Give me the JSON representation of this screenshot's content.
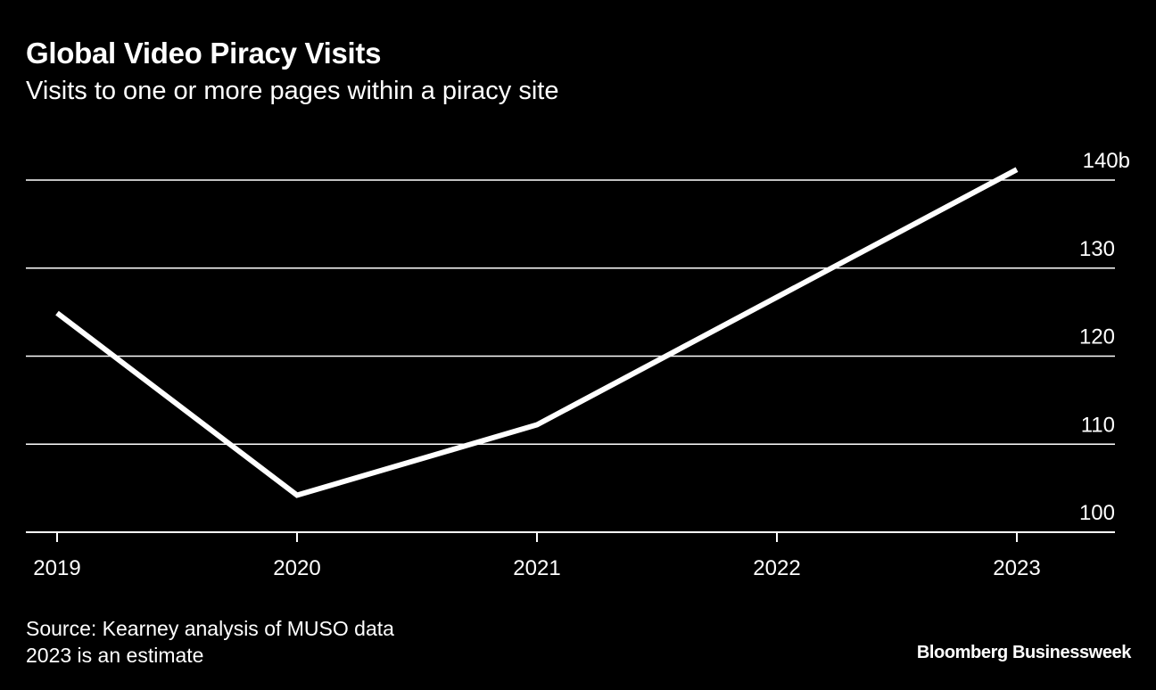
{
  "header": {
    "title": "Global Video Piracy Visits",
    "subtitle": "Visits to one or more pages within a piracy site"
  },
  "footer": {
    "source": "Source: Kearney analysis of MUSO data",
    "note": "2023 is an estimate",
    "brand": "Bloomberg Businessweek"
  },
  "colors": {
    "background": "#000000",
    "line": "#ffffff",
    "grid": "#ffffff",
    "text": "#ffffff"
  },
  "chart_data": {
    "type": "line",
    "title": "Global Video Piracy Visits",
    "subtitle": "Visits to one or more pages within a piracy site",
    "x": [
      "2019",
      "2020",
      "2021",
      "2022",
      "2023"
    ],
    "series": [
      {
        "values": [
          124.9,
          104.2,
          112.2,
          126.7,
          141.2
        ]
      }
    ],
    "ylim": [
      100,
      140
    ],
    "y_ticks": [
      100,
      110,
      120,
      130,
      140
    ],
    "y_tick_labels": [
      "100",
      "110",
      "120",
      "130",
      "140b"
    ],
    "y_axis_side": "right",
    "grid": true
  }
}
